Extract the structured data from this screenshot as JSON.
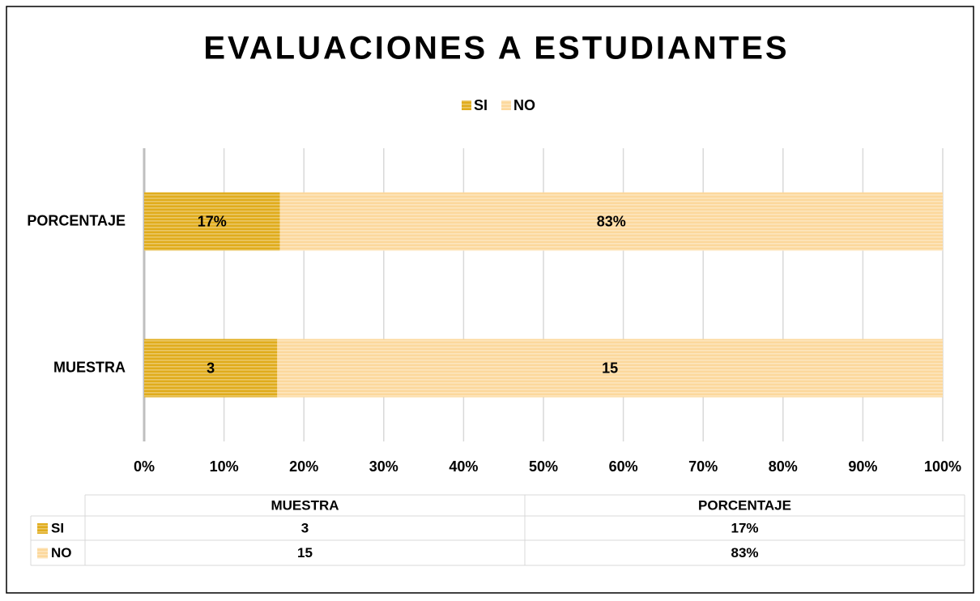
{
  "chart_data": {
    "type": "stacked100_barh",
    "title": "EVALUACIONES A ESTUDIANTES",
    "categories": [
      "MUESTRA",
      "PORCENTAJE"
    ],
    "series": [
      {
        "name": "SI",
        "color": "#e0ac1c",
        "values": [
          3,
          17
        ],
        "value_labels": [
          "3",
          "17%"
        ]
      },
      {
        "name": "NO",
        "color": "#fcd89c",
        "values": [
          15,
          83
        ],
        "value_labels": [
          "15",
          "83%"
        ]
      }
    ],
    "xlim": [
      0,
      100
    ],
    "xticks": [
      {
        "value": 0,
        "label": "0%"
      },
      {
        "value": 10,
        "label": "10%"
      },
      {
        "value": 20,
        "label": "20%"
      },
      {
        "value": 30,
        "label": "30%"
      },
      {
        "value": 40,
        "label": "40%"
      },
      {
        "value": 50,
        "label": "50%"
      },
      {
        "value": 60,
        "label": "60%"
      },
      {
        "value": 70,
        "label": "70%"
      },
      {
        "value": 80,
        "label": "80%"
      },
      {
        "value": 90,
        "label": "90%"
      },
      {
        "value": 100,
        "label": "100%"
      }
    ],
    "grid": true,
    "legend": "top",
    "data_table": true
  }
}
